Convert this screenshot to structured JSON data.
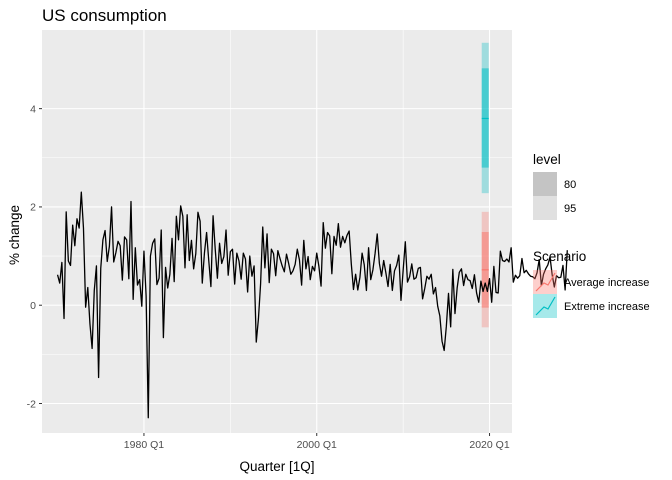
{
  "chart_data": {
    "type": "line",
    "title": "US consumption",
    "xlabel": "Quarter [1Q]",
    "ylabel": "% change",
    "x_ticks": [
      {
        "label": "1980 Q1",
        "value": 1980.0
      },
      {
        "label": "2000 Q1",
        "value": 2000.0
      },
      {
        "label": "2020 Q1",
        "value": 2020.0
      }
    ],
    "y_ticks": [
      {
        "label": "-2",
        "value": -2
      },
      {
        "label": "0",
        "value": 0
      },
      {
        "label": "2",
        "value": 2
      },
      {
        "label": "4",
        "value": 4
      }
    ],
    "xlim": [
      1968.2,
      2022.6
    ],
    "ylim": [
      -2.6,
      5.6
    ],
    "grid": true,
    "legend_position": "right",
    "colors": {
      "panel": "#ebebeb",
      "grid_major": "#ffffff",
      "history_line": "#000000",
      "average_increase": "#f8766d",
      "extreme_increase": "#00bfc4"
    },
    "history": {
      "start_quarter": "1970 Q1",
      "values": [
        0.62,
        0.45,
        0.87,
        -0.27,
        1.9,
        0.9,
        0.81,
        1.63,
        1.21,
        1.76,
        1.57,
        2.3,
        1.57,
        -0.04,
        0.36,
        -0.38,
        -0.88,
        0.3,
        0.8,
        -1.47,
        0.75,
        1.33,
        1.52,
        0.89,
        1.2,
        2.0,
        0.88,
        1.07,
        1.3,
        1.21,
        0.51,
        1.39,
        1.33,
        0.54,
        2.11,
        0.12,
        1.17,
        0.41,
        0.52,
        -0.02,
        1.1,
        0.19,
        -2.29,
        1.0,
        1.26,
        1.35,
        0.42,
        0.55,
        1.53,
        -0.66,
        0.77,
        0.35,
        0.63,
        1.36,
        0.48,
        1.81,
        1.33,
        2.02,
        1.81,
        0.76,
        1.84,
        0.91,
        1.32,
        0.74,
        1.05,
        1.89,
        1.71,
        0.45,
        1.06,
        1.48,
        0.91,
        0.38,
        1.82,
        1.14,
        0.55,
        1.26,
        0.85,
        0.99,
        1.53,
        0.61,
        1.09,
        1.14,
        0.43,
        1.06,
        0.9,
        0.53,
        1.06,
        0.94,
        0.27,
        1.0,
        0.59,
        0.8,
        -0.75,
        -0.28,
        0.43,
        1.59,
        0.76,
        1.45,
        0.46,
        1.14,
        1.05,
        0.6,
        1.11,
        0.95,
        0.8,
        0.68,
        1.04,
        0.85,
        0.63,
        0.7,
        0.83,
        1.14,
        0.92,
        0.41,
        1.32,
        0.74,
        0.99,
        0.52,
        0.79,
        0.7,
        1.06,
        0.79,
        0.39,
        1.68,
        1.16,
        1.48,
        1.41,
        0.64,
        1.4,
        1.22,
        1.66,
        1.18,
        1.4,
        1.27,
        1.42,
        1.51,
        0.84,
        0.32,
        0.63,
        0.31,
        0.57,
        1.06,
        0.82,
        0.3,
        1.17,
        0.52,
        0.72,
        1.05,
        1.45,
        0.85,
        0.59,
        0.91,
        0.66,
        0.38,
        0.83,
        0.3,
        0.7,
        0.81,
        1.02,
        0.1,
        0.71,
        1.29,
        0.47,
        0.58,
        0.84,
        0.53,
        0.56,
        0.75,
        0.77,
        0.13,
        0.34,
        0.59,
        0.53,
        0.63,
        0.23,
        0.36,
        -0.02,
        -0.22,
        -0.73,
        -0.92,
        -0.43,
        0.24,
        -0.44,
        0.73,
        -0.17,
        0.35,
        0.67,
        0.74,
        0.4,
        0.63,
        0.52,
        0.5,
        0.34,
        0.62,
        0.25,
        0.06,
        0.49,
        0.28,
        0.45,
        0.28,
        0.54,
        0.06,
        0.79,
        0.26,
        0.25,
        1.1,
        0.91,
        0.89,
        0.94,
        0.88,
        1.17,
        0.47,
        0.61,
        0.55,
        0.6,
        0.95,
        0.66,
        0.71,
        0.64,
        0.59,
        0.58,
        0.54,
        0.66,
        0.93,
        0.4,
        0.63,
        0.74,
        0.82,
        0.98,
        0.62,
        0.37,
        0.6,
        0.56,
        0.57,
        0.81,
        0.31,
        1.12
      ]
    },
    "forecasts": [
      {
        "scenario": "Average increase",
        "quarter": "2019 Q3",
        "x": 2019.5,
        "mean": 0.72,
        "pi80": [
          -0.05,
          1.49
        ],
        "pi95": [
          -0.45,
          1.9
        ]
      },
      {
        "scenario": "Extreme increase",
        "quarter": "2019 Q3",
        "x": 2019.5,
        "mean": 3.8,
        "pi80": [
          2.8,
          4.82
        ],
        "pi95": [
          2.28,
          5.34
        ]
      }
    ],
    "legend": {
      "level": {
        "title": "level",
        "entries": [
          {
            "label": "80",
            "shade": "#c4c4c4"
          },
          {
            "label": "95",
            "shade": "#e0e0e0"
          }
        ]
      },
      "scenario": {
        "title": "Scenario",
        "entries": [
          {
            "label": "Average increase",
            "color": "#f8766d"
          },
          {
            "label": "Extreme increase",
            "color": "#00bfc4"
          }
        ]
      }
    }
  }
}
